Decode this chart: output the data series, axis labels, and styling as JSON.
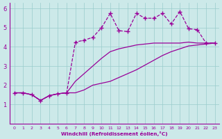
{
  "xlabel": "Windchill (Refroidissement éolien,°C)",
  "background_color": "#cce9e9",
  "line_color": "#990099",
  "xlim": [
    -0.5,
    23.5
  ],
  "ylim": [
    0,
    6.3
  ],
  "xticks": [
    0,
    1,
    2,
    3,
    4,
    5,
    6,
    7,
    8,
    9,
    10,
    11,
    12,
    13,
    14,
    15,
    16,
    17,
    18,
    19,
    20,
    21,
    22,
    23
  ],
  "yticks": [
    1,
    2,
    3,
    4,
    5,
    6
  ],
  "grid_color": "#99cccc",
  "series": [
    {
      "x": [
        0,
        1,
        2,
        3,
        4,
        5,
        6,
        7,
        8,
        9,
        10,
        11,
        12,
        13,
        14,
        15,
        16,
        17,
        18,
        19,
        20,
        21,
        22,
        23
      ],
      "y": [
        1.6,
        1.6,
        1.5,
        1.2,
        1.45,
        1.55,
        1.6,
        1.6,
        1.75,
        2.0,
        2.1,
        2.2,
        2.4,
        2.6,
        2.8,
        3.05,
        3.3,
        3.55,
        3.75,
        3.9,
        4.05,
        4.1,
        4.15,
        4.2
      ],
      "linestyle": "-",
      "marker": null,
      "linewidth": 0.9
    },
    {
      "x": [
        0,
        1,
        2,
        3,
        4,
        5,
        6,
        7,
        8,
        9,
        10,
        11,
        12,
        13,
        14,
        15,
        16,
        17,
        18,
        19,
        20,
        21,
        22,
        23
      ],
      "y": [
        1.6,
        1.6,
        1.5,
        1.2,
        1.45,
        1.55,
        1.6,
        2.2,
        2.6,
        3.0,
        3.4,
        3.75,
        3.9,
        4.0,
        4.1,
        4.15,
        4.2,
        4.2,
        4.2,
        4.2,
        4.25,
        4.2,
        4.2,
        4.2
      ],
      "linestyle": "-",
      "marker": null,
      "linewidth": 0.9
    },
    {
      "x": [
        0,
        1,
        2,
        3,
        4,
        5,
        6,
        7,
        8,
        9,
        10,
        11,
        12,
        13,
        14,
        15,
        16,
        17,
        18,
        19,
        20,
        21,
        22,
        23
      ],
      "y": [
        1.6,
        1.6,
        1.5,
        1.2,
        1.45,
        1.55,
        1.6,
        4.25,
        4.35,
        4.5,
        5.0,
        5.75,
        4.85,
        4.8,
        5.75,
        5.5,
        5.5,
        5.75,
        5.2,
        5.85,
        4.95,
        4.9,
        4.2,
        4.2
      ],
      "linestyle": "--",
      "marker": "+",
      "markersize": 4,
      "linewidth": 0.9
    }
  ]
}
